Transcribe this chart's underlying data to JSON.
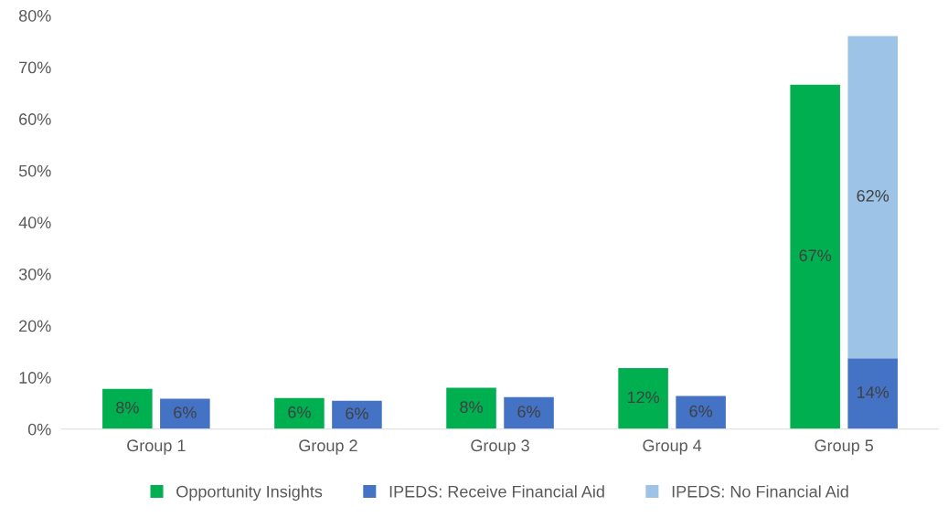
{
  "chart_data": {
    "type": "bar",
    "categories": [
      "Group 1",
      "Group 2",
      "Group 3",
      "Group 4",
      "Group 5"
    ],
    "series": [
      {
        "name": "Opportunity Insights",
        "color": "#00b050",
        "values": [
          7.8,
          6.0,
          8.0,
          11.8,
          66.6
        ],
        "value_labels": [
          "8%",
          "6%",
          "8%",
          "12%",
          "67%"
        ]
      },
      {
        "name": "IPEDS: Receive Financial Aid",
        "color": "#4472c4",
        "values": [
          5.9,
          5.5,
          6.2,
          6.4,
          13.7
        ],
        "value_labels": [
          "6%",
          "6%",
          "6%",
          "6%",
          "14%"
        ]
      },
      {
        "name": "IPEDS: No Financial Aid",
        "color": "#9dc3e6",
        "base": [
          null,
          null,
          null,
          null,
          13.7
        ],
        "values": [
          null,
          null,
          null,
          null,
          62.3
        ],
        "value_labels": [
          null,
          null,
          null,
          null,
          "62%"
        ]
      }
    ],
    "ylim": [
      0,
      80
    ],
    "yticks": [
      {
        "value": 0,
        "label": "0%"
      },
      {
        "value": 10,
        "label": "10%"
      },
      {
        "value": 20,
        "label": "20%"
      },
      {
        "value": 30,
        "label": "30%"
      },
      {
        "value": 40,
        "label": "40%"
      },
      {
        "value": 50,
        "label": "50%"
      },
      {
        "value": 60,
        "label": "60%"
      },
      {
        "value": 70,
        "label": "70%"
      },
      {
        "value": 80,
        "label": "80%"
      }
    ],
    "grid": false,
    "legend": "bottom"
  }
}
